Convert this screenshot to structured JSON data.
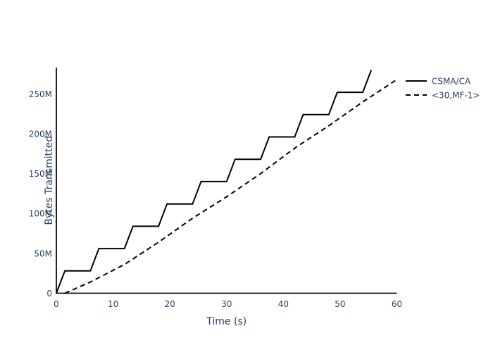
{
  "colors": {
    "text": "#2a3f5f",
    "line": "#000000",
    "axis": "#0d0d0d",
    "background": "#ffffff"
  },
  "chart_data": {
    "type": "line",
    "title": "",
    "xlabel": "Time (s)",
    "ylabel": "Bytes Transmitted",
    "xlim": [
      0,
      60
    ],
    "ylim": [
      0,
      283
    ],
    "grid": false,
    "legend_position": "right-top",
    "x_ticks": [
      {
        "value": 0,
        "label": "0"
      },
      {
        "value": 10,
        "label": "10"
      },
      {
        "value": 20,
        "label": "20"
      },
      {
        "value": 30,
        "label": "30"
      },
      {
        "value": 40,
        "label": "40"
      },
      {
        "value": 50,
        "label": "50"
      },
      {
        "value": 60,
        "label": "60"
      }
    ],
    "y_ticks": [
      {
        "value": 0,
        "label": "0"
      },
      {
        "value": 50,
        "label": "50M"
      },
      {
        "value": 100,
        "label": "100M"
      },
      {
        "value": 150,
        "label": "150M"
      },
      {
        "value": 200,
        "label": "200M"
      },
      {
        "value": 250,
        "label": "250M"
      }
    ],
    "y_unit_of_values": "millions of bytes",
    "series": [
      {
        "name": "CSMA/CA",
        "style": "solid",
        "color": "#000000",
        "width": 2,
        "x": [
          0,
          1.5,
          6,
          7.5,
          12,
          13.5,
          18,
          19.5,
          24,
          25.5,
          30,
          31.5,
          36,
          37.5,
          42,
          43.5,
          48,
          49.5,
          54,
          55.5
        ],
        "y": [
          0,
          28,
          28,
          56,
          56,
          84,
          84,
          112,
          112,
          140,
          140,
          168,
          168,
          196,
          196,
          224,
          224,
          252,
          252,
          280
        ]
      },
      {
        "name": "<30,MF-1>",
        "style": "dashed",
        "color": "#000000",
        "width": 2,
        "x": [
          1.5,
          6,
          12,
          18,
          24,
          30,
          36,
          42,
          48,
          54,
          60
        ],
        "y": [
          0,
          14,
          36,
          64,
          94,
          121,
          150,
          182,
          210,
          240,
          268
        ]
      }
    ]
  }
}
